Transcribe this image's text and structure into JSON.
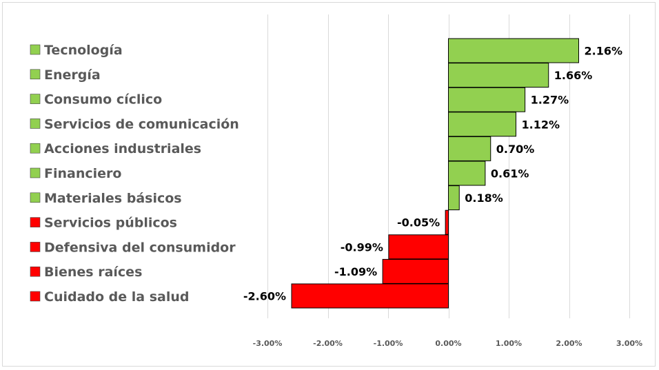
{
  "chart_data": {
    "type": "bar",
    "orientation": "horizontal",
    "title": "",
    "xlabel": "",
    "ylabel": "",
    "xlim": [
      -3,
      3
    ],
    "ticks": [
      -3,
      -2,
      -1,
      0,
      1,
      2,
      3
    ],
    "tick_labels": [
      "-3.00%",
      "-2.00%",
      "-1.00%",
      "0.00%",
      "1.00%",
      "2.00%",
      "3.00%"
    ],
    "grid": true,
    "legend": "left",
    "positive_color": "#92d050",
    "negative_color": "#ff0000",
    "categories": [
      "Tecnología",
      "Energía",
      "Consumo cíclico",
      "Servicios de comunicación",
      "Acciones industriales",
      "Financiero",
      "Materiales básicos",
      "Servicios públicos",
      "Defensiva del consumidor",
      "Bienes raíces",
      "Cuidado de la salud"
    ],
    "values": [
      2.16,
      1.66,
      1.27,
      1.12,
      0.7,
      0.61,
      0.18,
      -0.05,
      -0.99,
      -1.09,
      -2.6
    ],
    "value_labels": [
      "2.16%",
      "1.66%",
      "1.27%",
      "1.12%",
      "0.70%",
      "0.61%",
      "0.18%",
      "-0.05%",
      "-0.99%",
      "-1.09%",
      "-2.60%"
    ]
  }
}
